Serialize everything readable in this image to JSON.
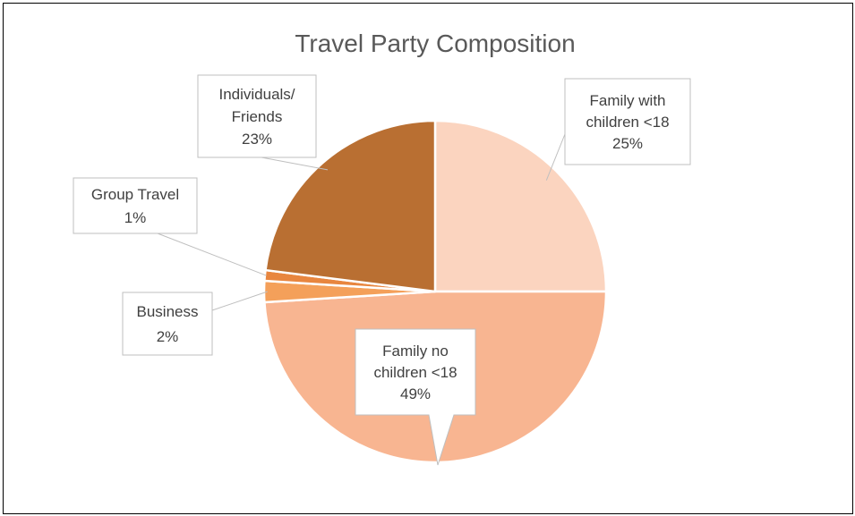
{
  "chart_data": {
    "type": "pie",
    "title": "Travel Party Composition",
    "categories": [
      "Family with children <18",
      "Family no children <18",
      "Business",
      "Group Travel",
      "Individuals/ Friends"
    ],
    "values": [
      25,
      49,
      2,
      1,
      23
    ],
    "unit": "%",
    "colors": [
      "#fbd4bf",
      "#f8b591",
      "#f4a05a",
      "#e8863f",
      "#b96f32"
    ],
    "legend": "none",
    "data_labels": [
      {
        "lines": [
          "Family with",
          "children <18",
          "25%"
        ]
      },
      {
        "lines": [
          "Family no",
          "children <18",
          "49%"
        ]
      },
      {
        "lines": [
          "Business",
          "2%"
        ]
      },
      {
        "lines": [
          "Group Travel",
          "1%"
        ]
      },
      {
        "lines": [
          "Individuals/",
          "Friends",
          "23%"
        ]
      }
    ]
  }
}
